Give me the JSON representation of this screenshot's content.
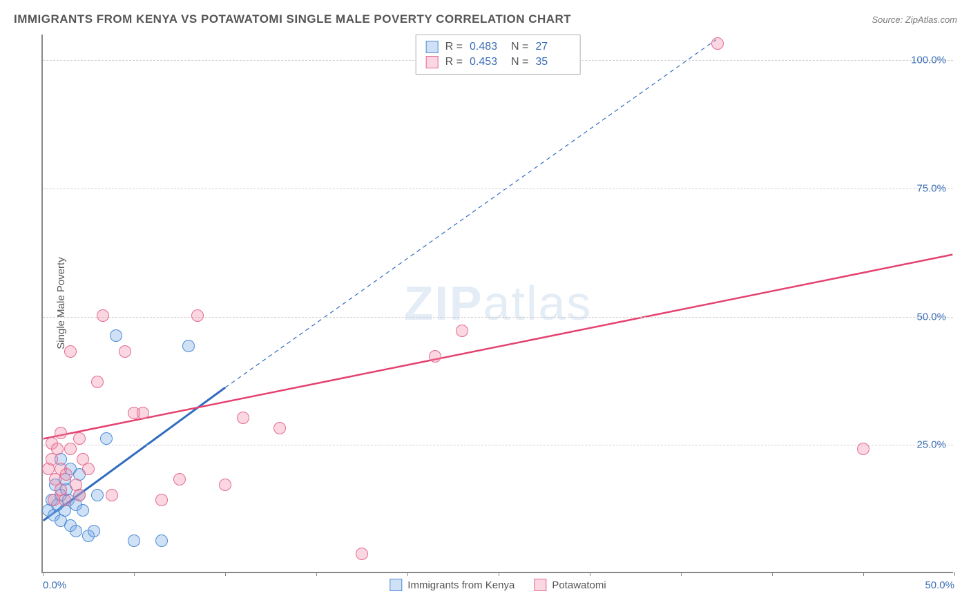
{
  "title": "IMMIGRANTS FROM KENYA VS POTAWATOMI SINGLE MALE POVERTY CORRELATION CHART",
  "source": "Source: ZipAtlas.com",
  "watermark": "ZIPatlas",
  "y_axis_label": "Single Male Poverty",
  "chart": {
    "type": "scatter",
    "xlim": [
      0,
      50
    ],
    "ylim": [
      0,
      105
    ],
    "x_ticks": [
      0,
      25,
      50
    ],
    "x_tick_labels": [
      "0.0%",
      "",
      "50.0%"
    ],
    "x_unlabeled_ticks": [
      5,
      10,
      15,
      20,
      30,
      35,
      40,
      45
    ],
    "y_gridlines": [
      25,
      50,
      75,
      100
    ],
    "y_tick_labels": [
      "25.0%",
      "50.0%",
      "75.0%",
      "100.0%"
    ],
    "background_color": "#ffffff",
    "grid_color": "#d0d0d0",
    "axis_color": "#888888",
    "tick_label_color": "#3b6db5",
    "marker_radius": 9,
    "marker_stroke_width": 1.5,
    "series": [
      {
        "name": "Immigrants from Kenya",
        "fill": "rgba(120,170,230,0.35)",
        "stroke": "#4a8bd6",
        "R": "0.483",
        "N": "27",
        "points": [
          [
            0.3,
            12
          ],
          [
            0.5,
            14
          ],
          [
            0.6,
            11
          ],
          [
            0.8,
            13
          ],
          [
            1.0,
            10
          ],
          [
            1.0,
            15
          ],
          [
            1.2,
            18
          ],
          [
            1.2,
            12
          ],
          [
            1.4,
            14
          ],
          [
            1.5,
            9
          ],
          [
            1.8,
            8
          ],
          [
            1.8,
            13
          ],
          [
            1.5,
            20
          ],
          [
            2.0,
            15
          ],
          [
            2.2,
            12
          ],
          [
            2.5,
            7
          ],
          [
            2.8,
            8
          ],
          [
            3.0,
            15
          ],
          [
            3.5,
            26
          ],
          [
            4.0,
            46
          ],
          [
            5.0,
            6
          ],
          [
            6.5,
            6
          ],
          [
            8.0,
            44
          ],
          [
            1.0,
            22
          ],
          [
            2.0,
            19
          ],
          [
            1.3,
            16
          ],
          [
            0.7,
            17
          ]
        ],
        "trend": {
          "x1": 0,
          "y1": 10,
          "x2": 10,
          "y2": 36,
          "dash_to_x": 37,
          "dash_to_y": 104,
          "color": "#2f6cc0",
          "solid_width": 3,
          "dash_pattern": "6,5"
        }
      },
      {
        "name": "Potawatomi",
        "fill": "rgba(240,140,170,0.35)",
        "stroke": "#e56a8f",
        "R": "0.453",
        "N": "35",
        "points": [
          [
            0.3,
            20
          ],
          [
            0.5,
            22
          ],
          [
            0.5,
            25
          ],
          [
            0.7,
            18
          ],
          [
            0.8,
            24
          ],
          [
            1.0,
            27
          ],
          [
            1.0,
            20
          ],
          [
            1.2,
            14
          ],
          [
            1.5,
            43
          ],
          [
            1.8,
            17
          ],
          [
            2.0,
            15
          ],
          [
            2.2,
            22
          ],
          [
            2.5,
            20
          ],
          [
            3.0,
            37
          ],
          [
            3.3,
            50
          ],
          [
            3.8,
            15
          ],
          [
            4.5,
            43
          ],
          [
            5.0,
            31
          ],
          [
            5.5,
            31
          ],
          [
            6.5,
            14
          ],
          [
            7.5,
            18
          ],
          [
            8.5,
            50
          ],
          [
            10.0,
            17
          ],
          [
            11.0,
            30
          ],
          [
            13.0,
            28
          ],
          [
            17.5,
            3.5
          ],
          [
            21.5,
            42
          ],
          [
            23.0,
            47
          ],
          [
            37.0,
            103
          ],
          [
            45.0,
            24
          ],
          [
            1.0,
            16
          ],
          [
            1.5,
            24
          ],
          [
            2.0,
            26
          ],
          [
            0.6,
            14
          ],
          [
            1.3,
            19
          ]
        ],
        "trend": {
          "x1": 0,
          "y1": 26,
          "x2": 50,
          "y2": 62,
          "color": "#e4416e",
          "solid_width": 2.5
        }
      }
    ]
  },
  "stats_box": {
    "R_label": "R =",
    "N_label": "N ="
  }
}
